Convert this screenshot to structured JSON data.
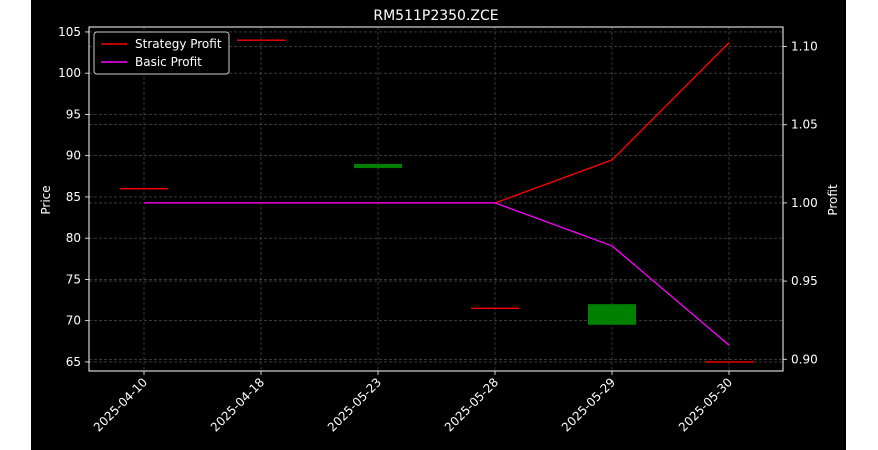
{
  "chart_data": {
    "type": "line",
    "title": "RM511P2350.ZCE",
    "xlabel": "",
    "ylabel": "Price",
    "y2label": "Profit",
    "categories": [
      "2025-04-10",
      "2025-04-18",
      "2025-05-23",
      "2025-05-28",
      "2025-05-29",
      "2025-05-30"
    ],
    "ylim": [
      63.9,
      105.6
    ],
    "y2lim": [
      0.8925,
      1.1125
    ],
    "yticks": [
      65,
      70,
      75,
      80,
      85,
      90,
      95,
      100,
      105
    ],
    "y2ticks": [
      0.9,
      0.95,
      1.0,
      1.05,
      1.1
    ],
    "grid": true,
    "legend_position": "top-left",
    "candles": [
      {
        "x": "2025-04-10",
        "open": 86.0,
        "close": 86.0,
        "color": "#ff0000"
      },
      {
        "x": "2025-04-18",
        "open": 104.0,
        "close": 104.0,
        "color": "#ff0000"
      },
      {
        "x": "2025-05-23",
        "open": 89.0,
        "close": 88.5,
        "color": "#008000"
      },
      {
        "x": "2025-05-28",
        "open": 71.5,
        "close": 71.5,
        "color": "#ff0000"
      },
      {
        "x": "2025-05-29",
        "open": 69.5,
        "close": 72.0,
        "color": "#008000"
      },
      {
        "x": "2025-05-30",
        "open": 65.0,
        "close": 65.0,
        "color": "#ff0000"
      }
    ],
    "series": [
      {
        "name": "Strategy Profit",
        "color": "#ff0000",
        "axis": "right",
        "values": [
          1.0,
          1.0,
          1.0,
          1.0,
          1.0275,
          1.1025
        ]
      },
      {
        "name": "Basic Profit",
        "color": "#ff00ff",
        "axis": "right",
        "values": [
          1.0,
          1.0,
          1.0,
          1.0,
          0.9725,
          0.909
        ]
      }
    ]
  }
}
